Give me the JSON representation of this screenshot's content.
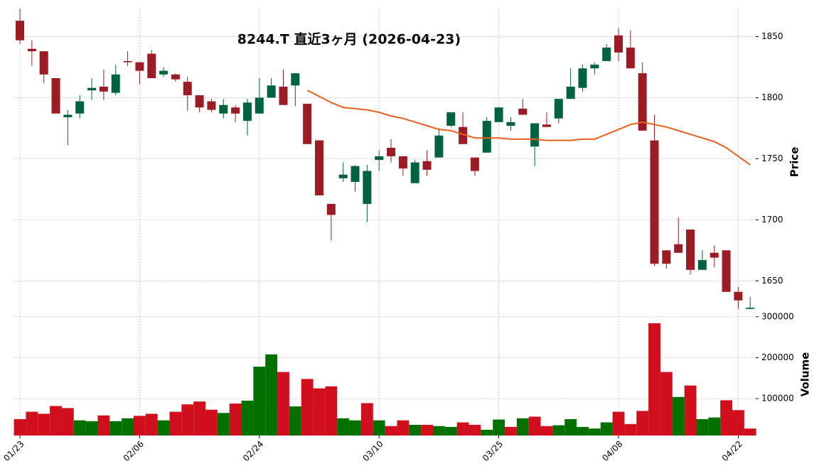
{
  "chart_data": {
    "type": "candlestick",
    "title": "8244.T  直近3ヶ月  (2026-04-23)",
    "categories": [
      "01/23",
      null,
      null,
      null,
      null,
      null,
      null,
      null,
      null,
      null,
      "02/06",
      null,
      null,
      null,
      null,
      null,
      null,
      null,
      null,
      null,
      "02/24",
      null,
      null,
      null,
      null,
      null,
      null,
      null,
      null,
      null,
      "03/10",
      null,
      null,
      null,
      null,
      null,
      null,
      null,
      null,
      null,
      "03/25",
      null,
      null,
      null,
      null,
      null,
      null,
      null,
      null,
      null,
      "04/08",
      null,
      null,
      null,
      null,
      null,
      null,
      null,
      null,
      null,
      "04/22",
      null
    ],
    "open": [
      1863,
      1840,
      1838,
      1816,
      1784,
      1787,
      1806,
      1809,
      1804,
      1830,
      1829,
      1836,
      1819,
      1819,
      1813,
      1802,
      1797,
      1787,
      1792,
      1781,
      1787,
      1800,
      1809,
      1810,
      1795,
      1765,
      1713,
      1734,
      1731,
      1713,
      1749,
      1759,
      1752,
      1730,
      1748,
      1751,
      1777,
      1776,
      1751,
      1755,
      1780,
      1777,
      1791,
      1760,
      1778,
      1783,
      1799,
      1808,
      1824,
      1830,
      1851,
      1841,
      1820,
      1765,
      1675,
      1680,
      1692,
      1659,
      1673,
      1675,
      1641,
      1627
    ],
    "high": [
      1873,
      1847,
      1838,
      1816,
      1790,
      1802,
      1816,
      1823,
      1827,
      1838,
      1829,
      1839,
      1825,
      1820,
      1817,
      1802,
      1799,
      1799,
      1794,
      1799,
      1816,
      1816,
      1823,
      1820,
      1795,
      1765,
      1713,
      1747,
      1745,
      1745,
      1757,
      1766,
      1752,
      1749,
      1757,
      1775,
      1788,
      1788,
      1751,
      1784,
      1792,
      1784,
      1799,
      1779,
      1788,
      1799,
      1824,
      1827,
      1829,
      1844,
      1857,
      1855,
      1829,
      1786,
      1675,
      1702,
      1692,
      1675,
      1679,
      1675,
      1645,
      1637
    ],
    "low": [
      1844,
      1826,
      1812,
      1787,
      1761,
      1783,
      1798,
      1798,
      1802,
      1826,
      1811,
      1816,
      1817,
      1813,
      1789,
      1788,
      1788,
      1783,
      1780,
      1769,
      1787,
      1800,
      1794,
      1793,
      1762,
      1720,
      1683,
      1731,
      1723,
      1698,
      1740,
      1747,
      1736,
      1730,
      1736,
      1751,
      1776,
      1762,
      1736,
      1755,
      1780,
      1773,
      1786,
      1744,
      1776,
      1779,
      1799,
      1805,
      1819,
      1830,
      1830,
      1824,
      1773,
      1662,
      1660,
      1673,
      1655,
      1659,
      1661,
      1641,
      1627,
      1627
    ],
    "close": [
      1847,
      1838,
      1819,
      1787,
      1786,
      1797,
      1808,
      1805,
      1819,
      1829,
      1822,
      1816,
      1822,
      1815,
      1802,
      1792,
      1790,
      1794,
      1787,
      1796,
      1800,
      1810,
      1794,
      1820,
      1762,
      1720,
      1704,
      1737,
      1744,
      1740,
      1752,
      1752,
      1742,
      1747,
      1741,
      1769,
      1788,
      1762,
      1740,
      1781,
      1792,
      1780,
      1786,
      1779,
      1776,
      1799,
      1809,
      1824,
      1827,
      1841,
      1837,
      1824,
      1773,
      1664,
      1664,
      1673,
      1659,
      1667,
      1669,
      1641,
      1634,
      1628
    ],
    "up_color": "#006340",
    "down_color": "#9b1c24",
    "ylim": [
      1624,
      1873
    ],
    "yticks": [
      1650,
      1700,
      1750,
      1800,
      1850
    ],
    "ylabel": "Price",
    "grid": true,
    "ma": {
      "color": "#e8601c",
      "values": [
        null,
        null,
        null,
        null,
        null,
        null,
        null,
        null,
        null,
        null,
        null,
        null,
        null,
        null,
        null,
        null,
        null,
        null,
        null,
        null,
        null,
        null,
        null,
        null,
        1806,
        1801,
        1796,
        1792,
        1791,
        1790,
        1788,
        1785,
        1783,
        1780,
        1777,
        1774,
        1773,
        1770,
        1767,
        1767,
        1767,
        1766,
        1766,
        1766,
        1765,
        1765,
        1765,
        1766,
        1766,
        1770,
        1774,
        1778,
        1780,
        1778,
        1776,
        1773,
        1770,
        1767,
        1764,
        1759,
        1752,
        1745
      ]
    },
    "volume": {
      "ylabel": "Volume",
      "ylim": [
        10000,
        310000
      ],
      "yticks": [
        100000,
        200000,
        300000
      ],
      "values": [
        50000,
        68000,
        63000,
        82000,
        77000,
        47000,
        45000,
        59000,
        45000,
        52000,
        58000,
        63000,
        47000,
        68000,
        86000,
        93000,
        73000,
        65000,
        88000,
        95000,
        178000,
        208000,
        165000,
        81000,
        148000,
        125000,
        130000,
        52000,
        47000,
        89000,
        47000,
        33000,
        47000,
        36000,
        36000,
        33000,
        31000,
        42000,
        36000,
        24000,
        49000,
        31000,
        52000,
        56000,
        33000,
        35000,
        50000,
        31000,
        27000,
        42000,
        68000,
        38000,
        70000,
        284000,
        165000,
        104000,
        132000,
        50000,
        54000,
        96000,
        72000,
        27000
      ],
      "colors": [
        "#d10f1c",
        "#d10f1c",
        "#d10f1c",
        "#d10f1c",
        "#d10f1c",
        "#007000",
        "#007000",
        "#d10f1c",
        "#007000",
        "#007000",
        "#d10f1c",
        "#d10f1c",
        "#007000",
        "#d10f1c",
        "#d10f1c",
        "#d10f1c",
        "#d10f1c",
        "#007000",
        "#d10f1c",
        "#007000",
        "#007000",
        "#007000",
        "#d10f1c",
        "#007000",
        "#d10f1c",
        "#d10f1c",
        "#d10f1c",
        "#007000",
        "#007000",
        "#d10f1c",
        "#007000",
        "#d10f1c",
        "#d10f1c",
        "#007000",
        "#d10f1c",
        "#007000",
        "#007000",
        "#d10f1c",
        "#d10f1c",
        "#007000",
        "#007000",
        "#d10f1c",
        "#007000",
        "#d10f1c",
        "#d10f1c",
        "#007000",
        "#007000",
        "#007000",
        "#007000",
        "#007000",
        "#d10f1c",
        "#d10f1c",
        "#d10f1c",
        "#d10f1c",
        "#d10f1c",
        "#007000",
        "#d10f1c",
        "#007000",
        "#007000",
        "#d10f1c",
        "#d10f1c",
        "#d10f1c"
      ]
    }
  }
}
